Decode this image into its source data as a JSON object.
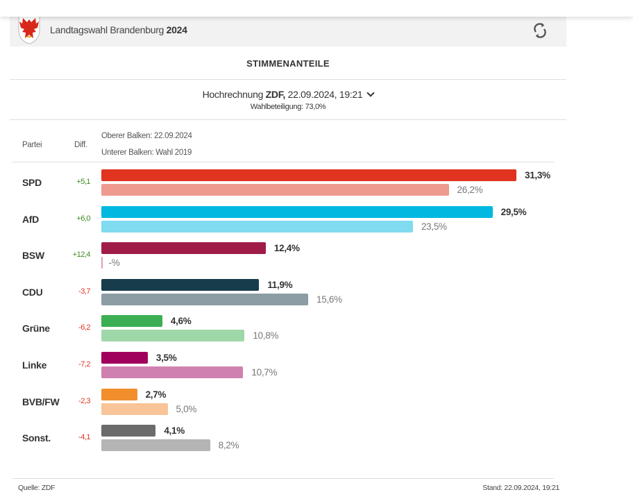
{
  "header": {
    "title_prefix": "Landtagswahl Brandenburg",
    "title_year": "2024",
    "refresh_icon": "refresh-icon",
    "logo": "brandenburg-eagle-crest"
  },
  "section_title": "STIMMENANTEILE",
  "projection": {
    "prefix": "Hochrechnung",
    "source": "ZDF,",
    "datetime": "22.09.2024, 19:21",
    "turnout": "Wahlbeteiligung: 73,0%"
  },
  "columns": {
    "party": "Partei",
    "diff": "Diff.",
    "upper": "Oberer Balken: 22.09.2024",
    "lower": "Unterer Balken: Wahl 2019"
  },
  "chart_data": {
    "type": "bar",
    "orientation": "horizontal",
    "categories": [
      "SPD",
      "AfD",
      "BSW",
      "CDU",
      "Grüne",
      "Linke",
      "BVB/FW",
      "Sonst."
    ],
    "series": [
      {
        "name": "Oberer Balken: 22.09.2024",
        "values": [
          31.3,
          29.5,
          12.4,
          11.9,
          4.6,
          3.5,
          2.7,
          4.1
        ],
        "labels": [
          "31,3%",
          "29,5%",
          "12,4%",
          "11,9%",
          "4,6%",
          "3,5%",
          "2,7%",
          "4,1%"
        ],
        "colors": [
          "#e03421",
          "#00b8e0",
          "#a01c48",
          "#173c4c",
          "#3cae54",
          "#a0005c",
          "#f28e2c",
          "#6b6b6b"
        ]
      },
      {
        "name": "Unterer Balken: Wahl 2019",
        "values": [
          26.2,
          23.5,
          null,
          15.6,
          10.8,
          10.7,
          5.0,
          8.2
        ],
        "labels": [
          "26,2%",
          "23,5%",
          "-%",
          "15,6%",
          "10,8%",
          "10,7%",
          "5,0%",
          "8,2%"
        ],
        "colors": [
          "#ef9a8f",
          "#80dbf0",
          "#e0a0b4",
          "#8c9ea4",
          "#9ed8a8",
          "#d080b0",
          "#f8c498",
          "#b4b4b4"
        ]
      }
    ],
    "diff": [
      "+5,1",
      "+6,0",
      "+12,4",
      "-3,7",
      "-6,2",
      "-7,2",
      "-2,3",
      "-4,1"
    ],
    "diff_colors": {
      "positive": "#3a8a1e",
      "negative": "#e03421"
    }
  },
  "footer": {
    "source": "Quelle: ZDF",
    "stand": "Stand: 22.09.2024, 19:21"
  }
}
